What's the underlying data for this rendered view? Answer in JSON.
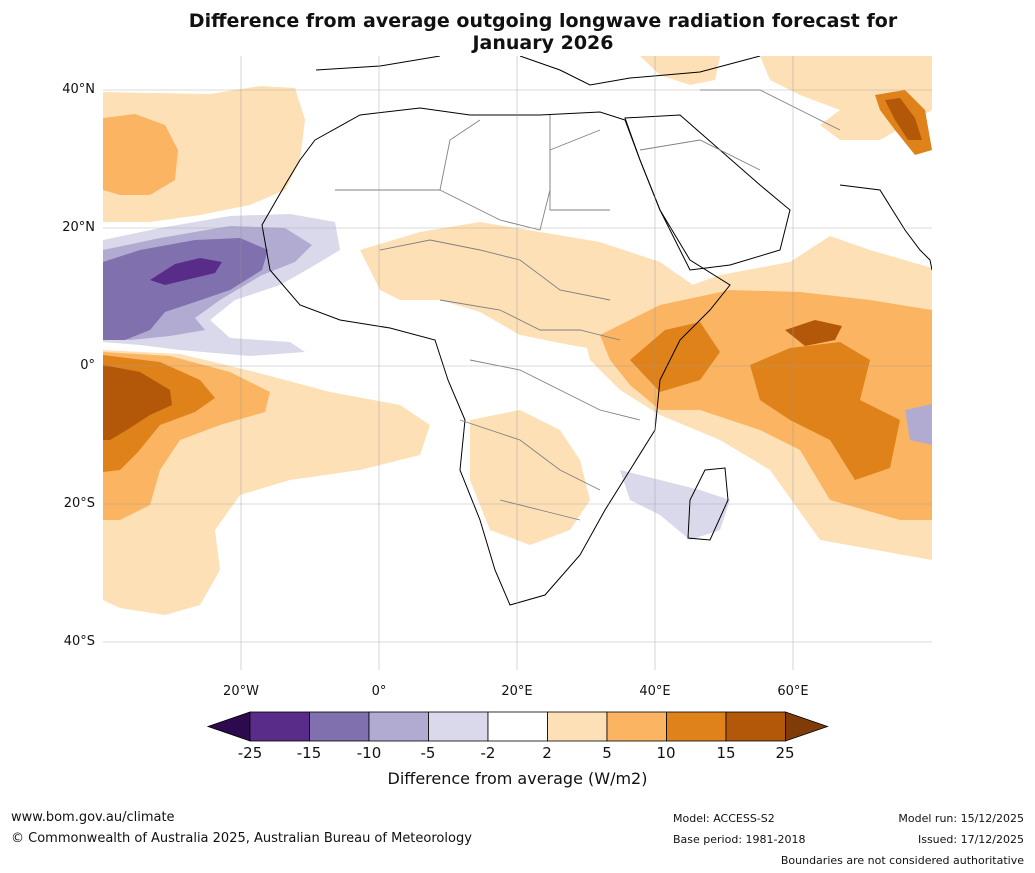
{
  "title": {
    "line1": "Difference from average outgoing longwave radiation forecast for",
    "line2": "January 2026"
  },
  "axes": {
    "lat_labels": [
      "40°N",
      "20°N",
      "0°",
      "20°S",
      "40°S"
    ],
    "lon_labels": [
      "20°W",
      "0°",
      "20°E",
      "40°E",
      "60°E"
    ]
  },
  "colorbar": {
    "title": "Difference from average (W/m2)",
    "ticks": [
      "-25",
      "-15",
      "-10",
      "-5",
      "-2",
      "2",
      "5",
      "10",
      "15",
      "25"
    ],
    "colors": {
      "under": "#2d0a4d",
      "bins": [
        "#5a2c8a",
        "#8070ad",
        "#b1abd1",
        "#d9d9eb",
        "#ffffff",
        "#fde0b6",
        "#fbb462",
        "#e0821a",
        "#b35808"
      ],
      "over": "#7f3b08"
    }
  },
  "footer": {
    "website": "www.bom.gov.au/climate",
    "copyright": "© Commonwealth of Australia 2025, Australian Bureau of Meteorology",
    "model": "Model: ACCESS-S2",
    "base_period": "Base period: 1981-2018",
    "model_run": "Model run: 15/12/2025",
    "issued": "Issued: 17/12/2025",
    "disclaimer": "Boundaries are not considered authoritative"
  }
}
